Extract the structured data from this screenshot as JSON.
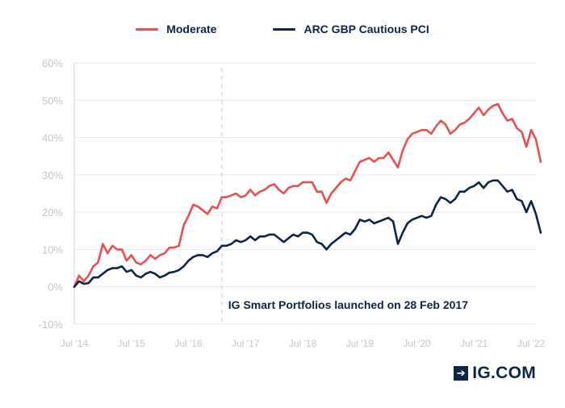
{
  "chart_data": {
    "type": "line",
    "title": "",
    "xlabel": "",
    "ylabel": "",
    "ylim": [
      -10,
      60
    ],
    "y_ticks": [
      -10,
      0,
      10,
      20,
      30,
      40,
      50,
      60
    ],
    "y_tick_labels": [
      "-10%",
      "0%",
      "10%",
      "20%",
      "30%",
      "40%",
      "50%",
      "60%"
    ],
    "x_range": [
      "2014-07",
      "2022-08"
    ],
    "x_ticks": [
      "2014-07",
      "2015-07",
      "2016-07",
      "2017-07",
      "2018-07",
      "2019-07",
      "2020-07",
      "2021-07",
      "2022-07"
    ],
    "x_tick_labels": [
      "Jul '14",
      "Jul '15",
      "Jul '16",
      "Jul '17",
      "Jul '18",
      "Jul '19",
      "Jul '20",
      "Jul '21",
      "Jul '22"
    ],
    "grid": true,
    "legend_position": "top-center",
    "annotation": {
      "date": "2017-02",
      "text": "IG Smart Portfolios launched on 28 Feb 2017",
      "style": "dashed vertical line"
    },
    "series": [
      {
        "name": "Moderate",
        "color": "#e8504f",
        "points": [
          [
            "2014-07",
            0
          ],
          [
            "2014-08",
            3
          ],
          [
            "2014-09",
            1.5
          ],
          [
            "2014-10",
            3
          ],
          [
            "2014-11",
            5.5
          ],
          [
            "2014-12",
            6.5
          ],
          [
            "2015-01",
            11.5
          ],
          [
            "2015-02",
            9
          ],
          [
            "2015-03",
            11
          ],
          [
            "2015-04",
            10
          ],
          [
            "2015-05",
            10
          ],
          [
            "2015-06",
            7
          ],
          [
            "2015-07",
            8.5
          ],
          [
            "2015-08",
            6.5
          ],
          [
            "2015-09",
            6
          ],
          [
            "2015-10",
            7
          ],
          [
            "2015-11",
            8.5
          ],
          [
            "2015-12",
            7.5
          ],
          [
            "2016-01",
            8.5
          ],
          [
            "2016-02",
            9
          ],
          [
            "2016-03",
            10.5
          ],
          [
            "2016-04",
            10.5
          ],
          [
            "2016-05",
            11
          ],
          [
            "2016-06",
            16.5
          ],
          [
            "2016-07",
            19
          ],
          [
            "2016-08",
            22
          ],
          [
            "2016-09",
            21.5
          ],
          [
            "2016-10",
            20.5
          ],
          [
            "2016-11",
            19.5
          ],
          [
            "2016-12",
            21.5
          ],
          [
            "2017-01",
            21
          ],
          [
            "2017-02",
            24
          ],
          [
            "2017-03",
            24
          ],
          [
            "2017-04",
            24.5
          ],
          [
            "2017-05",
            25
          ],
          [
            "2017-06",
            24
          ],
          [
            "2017-07",
            24.5
          ],
          [
            "2017-08",
            26
          ],
          [
            "2017-09",
            24.5
          ],
          [
            "2017-10",
            25.5
          ],
          [
            "2017-11",
            26
          ],
          [
            "2017-12",
            27
          ],
          [
            "2018-01",
            27.5
          ],
          [
            "2018-02",
            26
          ],
          [
            "2018-03",
            25
          ],
          [
            "2018-04",
            26.5
          ],
          [
            "2018-05",
            27
          ],
          [
            "2018-06",
            27
          ],
          [
            "2018-07",
            28
          ],
          [
            "2018-08",
            28
          ],
          [
            "2018-09",
            28
          ],
          [
            "2018-10",
            25.5
          ],
          [
            "2018-11",
            25.5
          ],
          [
            "2018-12",
            22.5
          ],
          [
            "2019-01",
            25
          ],
          [
            "2019-02",
            26.5
          ],
          [
            "2019-03",
            28
          ],
          [
            "2019-04",
            29
          ],
          [
            "2019-05",
            28.5
          ],
          [
            "2019-06",
            31
          ],
          [
            "2019-07",
            33.5
          ],
          [
            "2019-08",
            34
          ],
          [
            "2019-09",
            34.5
          ],
          [
            "2019-10",
            33.5
          ],
          [
            "2019-11",
            34.5
          ],
          [
            "2019-12",
            34.5
          ],
          [
            "2020-01",
            36
          ],
          [
            "2020-02",
            34
          ],
          [
            "2020-03",
            32
          ],
          [
            "2020-04",
            36.5
          ],
          [
            "2020-05",
            39.5
          ],
          [
            "2020-06",
            41
          ],
          [
            "2020-07",
            41.5
          ],
          [
            "2020-08",
            42
          ],
          [
            "2020-09",
            42
          ],
          [
            "2020-10",
            41
          ],
          [
            "2020-11",
            43
          ],
          [
            "2020-12",
            44.5
          ],
          [
            "2021-01",
            43.5
          ],
          [
            "2021-02",
            41
          ],
          [
            "2021-03",
            42
          ],
          [
            "2021-04",
            43.5
          ],
          [
            "2021-05",
            44
          ],
          [
            "2021-06",
            45
          ],
          [
            "2021-07",
            46.5
          ],
          [
            "2021-08",
            48
          ],
          [
            "2021-09",
            46
          ],
          [
            "2021-10",
            47.5
          ],
          [
            "2021-11",
            48.5
          ],
          [
            "2021-12",
            49
          ],
          [
            "2022-01",
            46.5
          ],
          [
            "2022-02",
            44.5
          ],
          [
            "2022-03",
            45
          ],
          [
            "2022-04",
            42.5
          ],
          [
            "2022-05",
            41.5
          ],
          [
            "2022-06",
            37.5
          ],
          [
            "2022-07",
            42
          ],
          [
            "2022-08",
            39.5
          ],
          [
            "2022-09",
            33.5
          ]
        ]
      },
      {
        "name": "ARC GBP Cautious PCI",
        "color": "#0b2545",
        "points": [
          [
            "2014-07",
            0
          ],
          [
            "2014-08",
            1.5
          ],
          [
            "2014-09",
            0.8
          ],
          [
            "2014-10",
            1
          ],
          [
            "2014-11",
            2.5
          ],
          [
            "2014-12",
            2.5
          ],
          [
            "2015-01",
            3.5
          ],
          [
            "2015-02",
            4.5
          ],
          [
            "2015-03",
            5
          ],
          [
            "2015-04",
            5
          ],
          [
            "2015-05",
            5.5
          ],
          [
            "2015-06",
            4
          ],
          [
            "2015-07",
            4.5
          ],
          [
            "2015-08",
            3
          ],
          [
            "2015-09",
            2.5
          ],
          [
            "2015-10",
            3.5
          ],
          [
            "2015-11",
            4
          ],
          [
            "2015-12",
            3.5
          ],
          [
            "2016-01",
            2.5
          ],
          [
            "2016-02",
            3
          ],
          [
            "2016-03",
            3.8
          ],
          [
            "2016-04",
            4
          ],
          [
            "2016-05",
            4.5
          ],
          [
            "2016-06",
            5.5
          ],
          [
            "2016-07",
            7
          ],
          [
            "2016-08",
            8
          ],
          [
            "2016-09",
            8.5
          ],
          [
            "2016-10",
            8.5
          ],
          [
            "2016-11",
            8
          ],
          [
            "2016-12",
            9
          ],
          [
            "2017-01",
            9.5
          ],
          [
            "2017-02",
            11
          ],
          [
            "2017-03",
            11
          ],
          [
            "2017-04",
            11.5
          ],
          [
            "2017-05",
            12.5
          ],
          [
            "2017-06",
            12
          ],
          [
            "2017-07",
            12.5
          ],
          [
            "2017-08",
            13.5
          ],
          [
            "2017-09",
            12.5
          ],
          [
            "2017-10",
            13.5
          ],
          [
            "2017-11",
            13.5
          ],
          [
            "2017-12",
            14
          ],
          [
            "2018-01",
            14
          ],
          [
            "2018-02",
            13
          ],
          [
            "2018-03",
            12
          ],
          [
            "2018-04",
            13
          ],
          [
            "2018-05",
            14
          ],
          [
            "2018-06",
            13.5
          ],
          [
            "2018-07",
            14.5
          ],
          [
            "2018-08",
            14.5
          ],
          [
            "2018-09",
            14
          ],
          [
            "2018-10",
            12
          ],
          [
            "2018-11",
            11.5
          ],
          [
            "2018-12",
            10
          ],
          [
            "2019-01",
            11.5
          ],
          [
            "2019-02",
            12.5
          ],
          [
            "2019-03",
            13.5
          ],
          [
            "2019-04",
            14.5
          ],
          [
            "2019-05",
            14
          ],
          [
            "2019-06",
            15.5
          ],
          [
            "2019-07",
            18
          ],
          [
            "2019-08",
            17.5
          ],
          [
            "2019-09",
            18
          ],
          [
            "2019-10",
            17
          ],
          [
            "2019-11",
            17.5
          ],
          [
            "2019-12",
            18
          ],
          [
            "2020-01",
            18.5
          ],
          [
            "2020-02",
            17.5
          ],
          [
            "2020-03",
            11.5
          ],
          [
            "2020-04",
            14.5
          ],
          [
            "2020-05",
            17
          ],
          [
            "2020-06",
            18
          ],
          [
            "2020-07",
            18.5
          ],
          [
            "2020-08",
            19
          ],
          [
            "2020-09",
            18.5
          ],
          [
            "2020-10",
            19
          ],
          [
            "2020-11",
            22
          ],
          [
            "2020-12",
            24
          ],
          [
            "2021-01",
            23.5
          ],
          [
            "2021-02",
            22.5
          ],
          [
            "2021-03",
            23.5
          ],
          [
            "2021-04",
            25.5
          ],
          [
            "2021-05",
            25.5
          ],
          [
            "2021-06",
            26.5
          ],
          [
            "2021-07",
            27
          ],
          [
            "2021-08",
            28
          ],
          [
            "2021-09",
            26.5
          ],
          [
            "2021-10",
            28
          ],
          [
            "2021-11",
            28.5
          ],
          [
            "2021-12",
            28.5
          ],
          [
            "2022-01",
            27
          ],
          [
            "2022-02",
            25.5
          ],
          [
            "2022-03",
            26
          ],
          [
            "2022-04",
            23.5
          ],
          [
            "2022-05",
            23
          ],
          [
            "2022-06",
            20
          ],
          [
            "2022-07",
            23
          ],
          [
            "2022-08",
            19.5
          ],
          [
            "2022-09",
            14.5
          ]
        ]
      }
    ]
  },
  "logo": {
    "text": "IG.COM",
    "icon": "arrow-right-box-icon",
    "glyph": "➔"
  }
}
